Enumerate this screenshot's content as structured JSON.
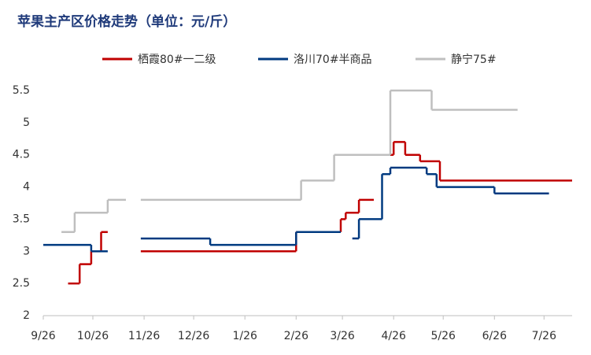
{
  "chart_data": {
    "type": "step",
    "title": "苹果主产区价格走势（单位：元/斤）",
    "xlim": [
      0,
      320
    ],
    "xticks": [
      {
        "value": 0,
        "label": "9/26"
      },
      {
        "value": 30,
        "label": "10/26"
      },
      {
        "value": 61,
        "label": "11/26"
      },
      {
        "value": 91,
        "label": "12/26"
      },
      {
        "value": 122,
        "label": "1/26"
      },
      {
        "value": 153,
        "label": "2/26"
      },
      {
        "value": 181,
        "label": "3/26"
      },
      {
        "value": 212,
        "label": "4/26"
      },
      {
        "value": 242,
        "label": "5/26"
      },
      {
        "value": 273,
        "label": "6/26"
      },
      {
        "value": 303,
        "label": "7/26"
      }
    ],
    "ylim": [
      2,
      5.5
    ],
    "yticks": [
      2,
      2.5,
      3,
      3.5,
      4,
      4.5,
      5,
      5.5
    ],
    "series": [
      {
        "name": "栖霞80#一二级",
        "color": "#c00000",
        "x": [
          15,
          22,
          29,
          35,
          39,
          59,
          153,
          180,
          183,
          191,
          200,
          210,
          212,
          219,
          228,
          240,
          320
        ],
        "values": [
          2.5,
          2.8,
          3.0,
          3.3,
          null,
          3.0,
          3.3,
          3.5,
          3.6,
          3.8,
          null,
          4.5,
          4.7,
          4.5,
          4.4,
          4.1,
          null
        ]
      },
      {
        "name": "洛川70#半商品",
        "color": "#003a80",
        "x": [
          0,
          29,
          39,
          59,
          101,
          153,
          180,
          187,
          191,
          205,
          210,
          232,
          238,
          273,
          306
        ],
        "values": [
          3.1,
          3.0,
          null,
          3.2,
          3.1,
          3.3,
          null,
          3.2,
          3.5,
          4.2,
          4.3,
          4.2,
          4.0,
          3.9,
          null
        ]
      },
      {
        "name": "静宁75#",
        "color": "#bfbfbf",
        "x": [
          11,
          19,
          39,
          50,
          59,
          156,
          176,
          210,
          235,
          287
        ],
        "values": [
          3.3,
          3.6,
          3.8,
          null,
          3.8,
          4.1,
          4.5,
          5.5,
          5.2,
          null
        ]
      }
    ]
  }
}
